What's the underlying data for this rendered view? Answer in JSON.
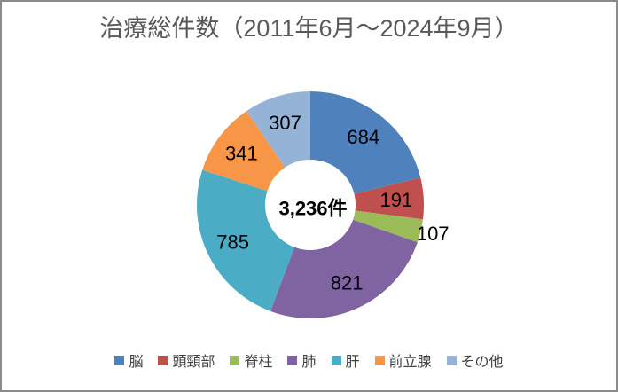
{
  "frame": {
    "background": "#FFFFFF",
    "border_color": "#8B8B8B",
    "title_color": "#595959",
    "data_label_color": "#000000",
    "legend_text_color": "#404040"
  },
  "chart_data": {
    "type": "pie",
    "subtype": "donut",
    "title": "治療総件数（2011年6月～2024年9月）",
    "center_label": "3,236件",
    "total": 3236,
    "categories": [
      "脳",
      "頭頸部",
      "脊柱",
      "肺",
      "肝",
      "前立腺",
      "その他"
    ],
    "values": [
      684,
      191,
      107,
      821,
      785,
      341,
      307
    ],
    "data_labels": [
      "684",
      "191",
      "107",
      "821",
      "785",
      "341",
      "307"
    ],
    "colors": [
      "#4F81BD",
      "#C0504D",
      "#9BBB59",
      "#8064A2",
      "#4BACC6",
      "#F79646",
      "#95B3D7"
    ],
    "start_angle_deg": 0,
    "direction": "clockwise",
    "legend_position": "bottom",
    "outside_label_categories": [
      "脊柱"
    ]
  }
}
